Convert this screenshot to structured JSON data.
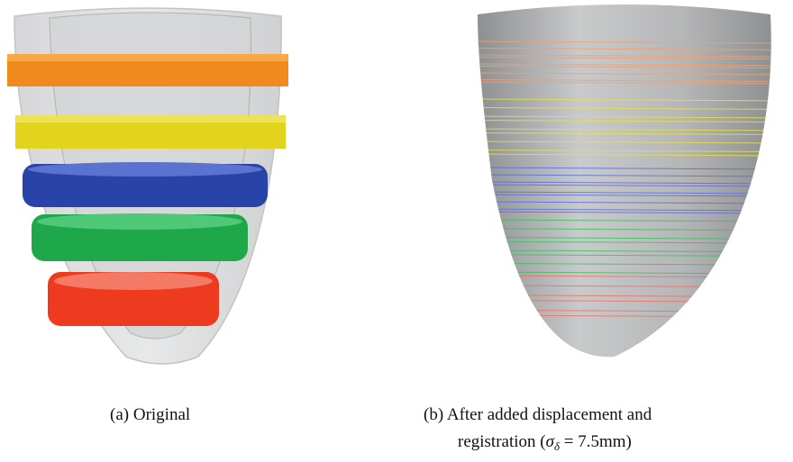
{
  "figures": [
    {
      "label": "(a)",
      "caption": "Original"
    },
    {
      "label": "(b)",
      "caption_lines": [
        "After added displacement and",
        "registration ("
      ],
      "symbol": "σ",
      "subscript": "δ",
      "caption_end": " = 7.5mm)"
    }
  ]
}
